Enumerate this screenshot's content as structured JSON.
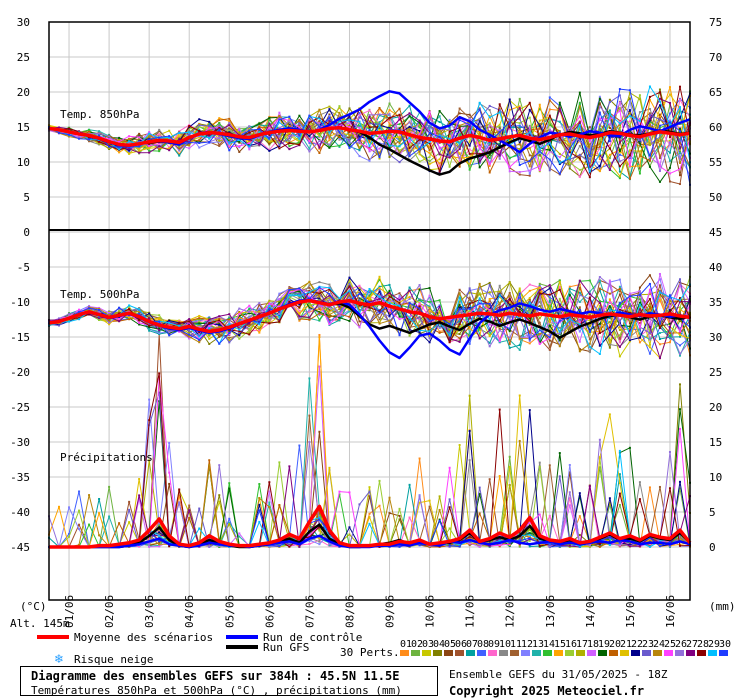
{
  "chart_data": {
    "type": "line",
    "title": "Diagramme des ensembles GEFS sur 384h : 45.5N 11.5E",
    "subtitle": "Températures 850hPa et 500hPa (°C) , précipitations (mm)",
    "run_info": "Ensemble GEFS du 31/05/2025 - 18Z",
    "copyright": "Copyright 2025 Meteociel.fr",
    "altitude": "Alt. 145m",
    "left_axis_unit": "(°C)",
    "right_axis_unit": "(mm)",
    "left_ticks": [
      "30",
      "25",
      "20",
      "15",
      "10",
      "5",
      "0",
      "-5",
      "-10",
      "-15",
      "-20",
      "-25",
      "-30",
      "-35",
      "-40",
      "-45"
    ],
    "right_ticks": [
      "75",
      "70",
      "65",
      "60",
      "55",
      "50",
      "45",
      "40",
      "35",
      "30",
      "25",
      "20",
      "15",
      "10",
      "5",
      "0"
    ],
    "x_dates": [
      "01/06",
      "02/06",
      "03/06",
      "04/06",
      "05/06",
      "06/06",
      "07/06",
      "08/06",
      "09/06",
      "10/06",
      "11/06",
      "12/06",
      "13/06",
      "14/06",
      "15/06",
      "16/06"
    ],
    "panel_labels": {
      "t850": "Temp. 850hPa",
      "t500": "Temp. 500hPa",
      "precip": "Précipitations"
    },
    "legend": {
      "mean": "Moyenne des scénarios",
      "control": "Run de contrôle",
      "gfs": "Run GFS",
      "snow": "Risque neige",
      "perts_label": "30 Perts.",
      "perts": [
        "01",
        "02",
        "03",
        "04",
        "05",
        "06",
        "07",
        "08",
        "09",
        "10",
        "11",
        "12",
        "13",
        "14",
        "15",
        "16",
        "17",
        "18",
        "19",
        "20",
        "21",
        "22",
        "23",
        "24",
        "25",
        "26",
        "27",
        "28",
        "29",
        "30"
      ]
    },
    "colors": {
      "mean": "#ff0000",
      "control": "#0000ff",
      "gfs": "#000000",
      "snow": "#2aa0ff",
      "perts": [
        "#ff8c1a",
        "#6db33f",
        "#c8c800",
        "#808000",
        "#8b4513",
        "#a0522d",
        "#00a0a0",
        "#4060ff",
        "#ff66cc",
        "#888888",
        "#a06030",
        "#8080ff",
        "#20b2aa",
        "#30c030",
        "#ffa500",
        "#9acd32",
        "#b0b000",
        "#d060ff",
        "#006400",
        "#c06000",
        "#e0c000",
        "#00008b",
        "#6a5acd",
        "#b8860b",
        "#ff40ff",
        "#9370db",
        "#800080",
        "#8b0000",
        "#00bfff",
        "#1e3cff"
      ]
    },
    "time_points": 65,
    "t850": {
      "mean": [
        14.8,
        14.6,
        14.3,
        14.0,
        13.8,
        13.4,
        12.9,
        12.5,
        12.4,
        12.6,
        12.9,
        13.1,
        13.0,
        12.8,
        13.5,
        14.0,
        14.2,
        14.1,
        13.9,
        13.6,
        13.5,
        13.9,
        14.2,
        14.4,
        14.5,
        14.4,
        14.3,
        14.5,
        14.8,
        14.9,
        14.6,
        14.4,
        14.1,
        14.2,
        14.4,
        14.3,
        13.9,
        13.5,
        13.3,
        13.0,
        12.9,
        13.4,
        13.8,
        13.5,
        13.1,
        13.3,
        13.6,
        13.8,
        13.4,
        13.2,
        13.5,
        13.9,
        14.0,
        13.7,
        13.5,
        13.8,
        14.2,
        14.1,
        13.8,
        13.6,
        14.0,
        14.3,
        14.1,
        13.9,
        14.1
      ],
      "control": [
        14.8,
        14.6,
        14.3,
        14.0,
        13.8,
        13.3,
        12.8,
        12.4,
        12.3,
        12.6,
        12.9,
        13.0,
        12.8,
        12.5,
        13.4,
        14.1,
        14.3,
        14.0,
        13.7,
        13.4,
        13.3,
        13.8,
        14.3,
        14.6,
        14.8,
        14.6,
        14.3,
        14.6,
        15.3,
        16.2,
        16.8,
        17.5,
        18.6,
        19.4,
        20.1,
        19.8,
        18.5,
        17.2,
        15.6,
        14.8,
        15.2,
        16.4,
        15.8,
        14.6,
        13.9,
        13.1,
        12.3,
        11.4,
        12.6,
        13.5,
        14.2,
        14.0,
        13.6,
        13.9,
        14.4,
        14.2,
        13.8,
        13.7,
        14.6,
        15.1,
        14.8,
        14.4,
        15.0,
        15.6,
        16.1
      ],
      "gfs": [
        14.8,
        14.6,
        14.3,
        14.0,
        13.8,
        13.4,
        12.9,
        12.5,
        12.4,
        12.6,
        12.9,
        13.1,
        13.0,
        12.8,
        13.5,
        14.0,
        14.2,
        14.1,
        13.9,
        13.6,
        13.5,
        13.9,
        14.2,
        14.4,
        14.5,
        14.4,
        14.3,
        14.5,
        14.8,
        14.9,
        14.6,
        14.3,
        13.5,
        12.5,
        11.8,
        11.0,
        10.2,
        9.5,
        8.8,
        8.2,
        8.6,
        9.8,
        10.5,
        10.9,
        11.4,
        12.1,
        12.8,
        13.4,
        13.0,
        12.6,
        13.2,
        13.9,
        14.3,
        14.1,
        13.8,
        14.0,
        14.4,
        14.2,
        13.9,
        13.8,
        14.1,
        14.5,
        14.3,
        14.0,
        14.2
      ]
    },
    "t500": {
      "mean": [
        -13.0,
        -12.8,
        -12.3,
        -11.8,
        -11.4,
        -11.8,
        -12.2,
        -11.9,
        -11.6,
        -12.1,
        -12.8,
        -13.3,
        -13.6,
        -13.8,
        -13.5,
        -13.9,
        -14.2,
        -14.0,
        -13.6,
        -13.1,
        -12.6,
        -12.1,
        -11.6,
        -11.0,
        -10.5,
        -10.0,
        -9.8,
        -10.1,
        -10.4,
        -10.0,
        -9.8,
        -10.2,
        -10.4,
        -10.1,
        -10.6,
        -11.0,
        -11.4,
        -11.6,
        -12.1,
        -12.4,
        -12.2,
        -12.0,
        -11.8,
        -11.6,
        -11.7,
        -11.9,
        -11.6,
        -11.8,
        -12.0,
        -11.7,
        -11.9,
        -12.1,
        -11.8,
        -12.0,
        -12.2,
        -11.9,
        -11.7,
        -11.9,
        -12.1,
        -11.8,
        -12.0,
        -11.9,
        -11.7,
        -12.0,
        -12.2
      ],
      "control": [
        -13.0,
        -12.8,
        -12.3,
        -11.8,
        -11.5,
        -11.9,
        -12.3,
        -12.0,
        -11.7,
        -12.2,
        -12.9,
        -13.4,
        -13.8,
        -14.0,
        -13.7,
        -14.1,
        -14.4,
        -14.2,
        -13.8,
        -13.2,
        -12.7,
        -12.2,
        -11.6,
        -10.9,
        -10.3,
        -9.8,
        -9.7,
        -10.0,
        -10.3,
        -9.9,
        -10.4,
        -11.8,
        -13.5,
        -15.5,
        -17.2,
        -18.0,
        -16.5,
        -14.8,
        -14.5,
        -15.5,
        -16.8,
        -17.5,
        -15.2,
        -13.0,
        -11.8,
        -11.2,
        -10.8,
        -10.2,
        -10.6,
        -11.1,
        -11.4,
        -11.0,
        -11.3,
        -11.7,
        -11.4,
        -11.6,
        -11.9,
        -11.5,
        -11.8,
        -12.0,
        -11.6,
        -11.8,
        -12.1,
        -11.9,
        -12.2
      ],
      "gfs": [
        -13.0,
        -12.8,
        -12.3,
        -11.8,
        -11.4,
        -11.8,
        -12.2,
        -11.9,
        -11.6,
        -12.1,
        -12.8,
        -13.3,
        -13.6,
        -13.8,
        -13.5,
        -13.9,
        -14.2,
        -14.0,
        -13.6,
        -13.1,
        -12.6,
        -12.1,
        -11.6,
        -11.0,
        -10.5,
        -10.0,
        -9.8,
        -10.1,
        -10.4,
        -10.2,
        -10.8,
        -12.0,
        -13.2,
        -13.8,
        -13.4,
        -13.9,
        -14.4,
        -13.8,
        -13.2,
        -12.9,
        -13.5,
        -14.0,
        -13.1,
        -12.4,
        -12.8,
        -13.4,
        -12.9,
        -12.5,
        -13.0,
        -13.6,
        -14.2,
        -15.1,
        -14.3,
        -13.5,
        -13.0,
        -12.4,
        -12.0,
        -11.8,
        -12.2,
        -12.5,
        -12.1,
        -11.9,
        -12.2,
        -12.4,
        -12.1
      ]
    },
    "precip": {
      "mean": [
        0,
        0,
        0,
        0,
        0,
        0.1,
        0.1,
        0.2,
        0.3,
        0.5,
        1.2,
        2.0,
        0.8,
        0.2,
        0.1,
        0.3,
        0.8,
        0.4,
        0.2,
        0.1,
        0.1,
        0.2,
        0.3,
        0.5,
        0.9,
        0.6,
        1.8,
        2.9,
        1.2,
        0.3,
        0.1,
        0.1,
        0.1,
        0.2,
        0.2,
        0.4,
        0.3,
        0.5,
        0.2,
        0.3,
        0.4,
        0.6,
        1.2,
        0.4,
        0.6,
        1.0,
        0.7,
        1.2,
        2.1,
        0.8,
        0.5,
        0.4,
        0.6,
        0.3,
        0.4,
        0.7,
        1.0,
        0.6,
        0.8,
        0.5,
        0.9,
        0.7,
        0.6,
        1.2,
        0.3
      ],
      "control": [
        0,
        0,
        0,
        0,
        0,
        0,
        0,
        0,
        0.1,
        0.2,
        0.4,
        0.6,
        0.2,
        0.1,
        0,
        0.1,
        0.3,
        0.2,
        0.1,
        0.1,
        0,
        0.1,
        0.2,
        0.3,
        0.4,
        0.2,
        0.6,
        0.8,
        0.4,
        0.1,
        0,
        0,
        0,
        0.1,
        0.1,
        0.2,
        0.1,
        0.3,
        0.2,
        0.1,
        0.4,
        0.3,
        0.5,
        0.3,
        0.2,
        0.3,
        0.5,
        0.3,
        0.2,
        0.3,
        0.4,
        0.2,
        0.3,
        0.2,
        0.3,
        0.4,
        0.3,
        0.5,
        0.4,
        0.2,
        0.3,
        0.3,
        0.2,
        0.4,
        0.2
      ],
      "gfs": [
        0,
        0,
        0,
        0,
        0,
        0,
        0,
        0,
        0.1,
        0.3,
        0.8,
        1.4,
        0.5,
        0.1,
        0,
        0.2,
        0.5,
        0.3,
        0.1,
        0,
        0,
        0.1,
        0.2,
        0.4,
        0.6,
        0.3,
        1.1,
        1.6,
        0.6,
        0.2,
        0,
        0,
        0.1,
        0.2,
        0.3,
        0.5,
        0.2,
        0.4,
        0.2,
        0.3,
        0.3,
        0.5,
        1.0,
        0.4,
        0.5,
        0.7,
        0.5,
        0.8,
        1.5,
        0.6,
        0.4,
        0.3,
        0.5,
        0.2,
        0.3,
        0.6,
        0.9,
        0.5,
        0.6,
        0.4,
        0.8,
        0.6,
        0.5,
        1.0,
        0.3
      ]
    }
  }
}
